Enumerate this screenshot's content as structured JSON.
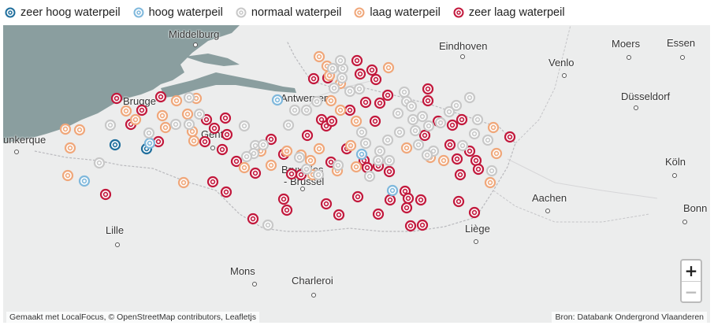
{
  "legend": [
    {
      "label": "zeer hoog waterpeil",
      "color": "#1f6e9c",
      "key": "zeer_hoog"
    },
    {
      "label": "hoog waterpeil",
      "color": "#7fb8dc",
      "key": "hoog"
    },
    {
      "label": "normaal waterpeil",
      "color": "#c8c8c8",
      "key": "normaal"
    },
    {
      "label": "laag waterpeil",
      "color": "#f0a77a",
      "key": "laag"
    },
    {
      "label": "zeer laag waterpeil",
      "color": "#c2183c",
      "key": "zeer_laag"
    }
  ],
  "cities": [
    {
      "name": "Middelburg"
    },
    {
      "name": "Eindhoven"
    },
    {
      "name": "Moers"
    },
    {
      "name": "Essen"
    },
    {
      "name": "Venlo"
    },
    {
      "name": "Düsseldorf"
    },
    {
      "name": "Antwerpen"
    },
    {
      "name": "Brugge"
    },
    {
      "name": "unkerque"
    },
    {
      "name": "Gent"
    },
    {
      "name": "Bruxelles"
    },
    {
      "name": "- Brussel"
    },
    {
      "name": "Köln"
    },
    {
      "name": "Aachen"
    },
    {
      "name": "Lille"
    },
    {
      "name": "Liège"
    },
    {
      "name": "Bonn"
    },
    {
      "name": "Mons"
    },
    {
      "name": "Charleroi"
    }
  ],
  "zoom": {
    "in_label": "+",
    "out_label": "−"
  },
  "attribution": {
    "left": "Gemaakt met LocalFocus, © OpenStreetMap contributors, Leafletjs",
    "right": "Bron: Databank Ondergrond Vlaanderen"
  }
}
